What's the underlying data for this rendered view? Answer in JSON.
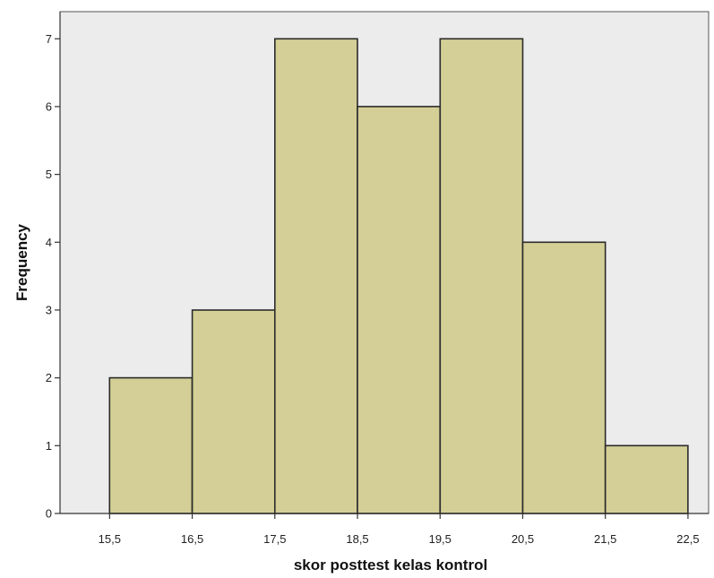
{
  "chart_data": {
    "type": "bar",
    "title": "",
    "xlabel": "skor posttest kelas kontrol",
    "ylabel": "Frequency",
    "bins": [
      {
        "from": 15.5,
        "to": 16.5,
        "value": 2
      },
      {
        "from": 16.5,
        "to": 17.5,
        "value": 3
      },
      {
        "from": 17.5,
        "to": 18.5,
        "value": 7
      },
      {
        "from": 18.5,
        "to": 19.5,
        "value": 6
      },
      {
        "from": 19.5,
        "to": 20.5,
        "value": 7
      },
      {
        "from": 20.5,
        "to": 21.5,
        "value": 4
      },
      {
        "from": 21.5,
        "to": 22.5,
        "value": 1
      }
    ],
    "x_ticks": [
      "15,5",
      "16,5",
      "17,5",
      "18,5",
      "19,5",
      "20,5",
      "21,5",
      "22,5"
    ],
    "x_tick_values": [
      15.5,
      16.5,
      17.5,
      18.5,
      19.5,
      20.5,
      21.5,
      22.5
    ],
    "y_ticks": [
      "0",
      "1",
      "2",
      "3",
      "4",
      "5",
      "6",
      "7"
    ],
    "y_tick_values": [
      0,
      1,
      2,
      3,
      4,
      5,
      6,
      7
    ],
    "xlim": [
      14.9,
      22.75
    ],
    "ylim": [
      0,
      7.4
    ],
    "grid": false,
    "colors": {
      "bar_fill": "#d4cf96",
      "bar_stroke": "#2b2b2b",
      "plot_background": "#ececec",
      "axis": "#333333"
    }
  }
}
